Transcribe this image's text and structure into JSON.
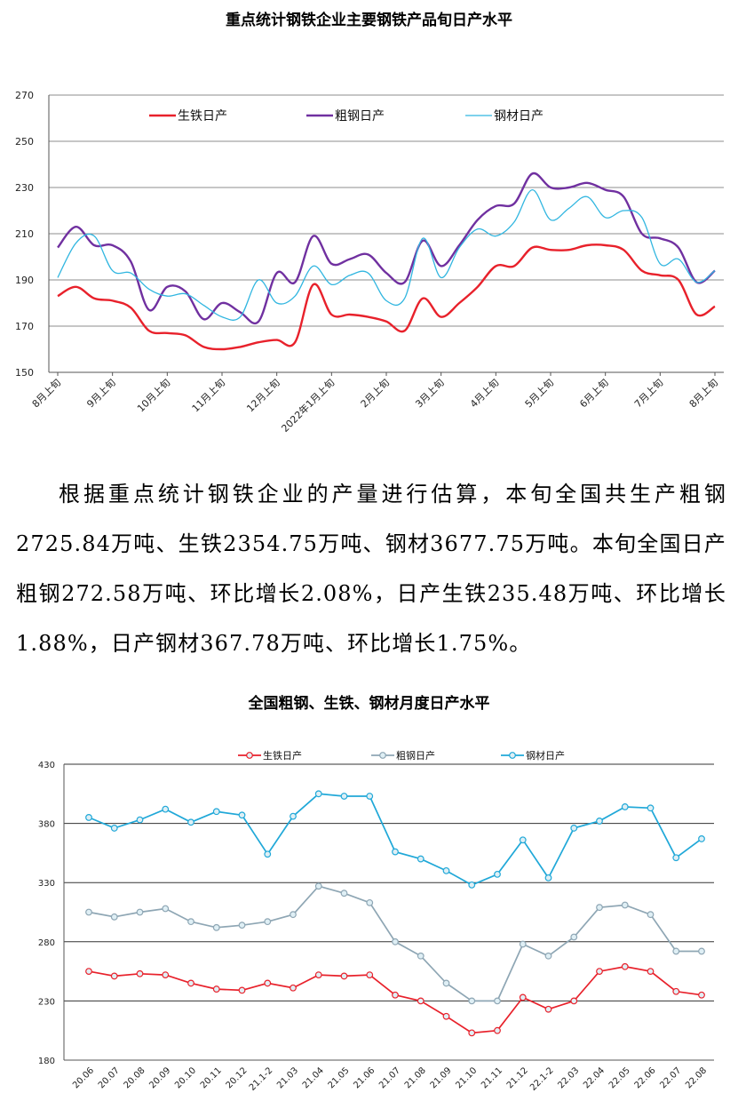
{
  "chart_data": [
    {
      "type": "line",
      "title": "重点统计钢铁企业主要钢铁产品旬日产水平",
      "ylim": [
        150,
        270
      ],
      "yticks": [
        150,
        170,
        190,
        210,
        230,
        250,
        270
      ],
      "grid": true,
      "legend": "top",
      "x_tick_labels": [
        "8月上旬",
        "9月上旬",
        "10月上旬",
        "11月上旬",
        "12月上旬",
        "2022年1月上旬",
        "2月上旬",
        "3月上旬",
        "4月上旬",
        "5月上旬",
        "6月上旬",
        "7月上旬",
        "8月上旬"
      ],
      "series": [
        {
          "name": "生铁日产",
          "color": "#e8212b",
          "values": [
            183,
            187,
            182,
            181,
            178,
            168,
            167,
            166,
            161,
            160,
            161,
            163,
            164,
            163,
            188,
            175,
            175,
            174,
            172,
            168,
            182,
            174,
            180,
            187,
            196,
            196,
            204,
            203,
            203,
            205,
            205,
            203,
            194,
            192,
            190,
            175,
            178.5
          ]
        },
        {
          "name": "粗钢日产",
          "color": "#7030a0",
          "values": [
            204,
            213,
            205,
            205,
            198,
            177,
            187,
            185,
            173,
            180,
            176,
            172,
            193,
            189,
            209,
            197,
            199,
            201,
            193,
            189,
            207,
            196,
            205,
            216,
            222,
            223,
            236,
            230,
            230,
            232,
            229,
            226,
            210,
            208,
            204,
            189,
            194
          ]
        },
        {
          "name": "钢材日产",
          "color": "#31b6e0",
          "values": [
            191,
            206,
            209,
            194,
            193,
            186,
            183,
            184,
            179,
            174,
            174,
            190,
            180,
            183,
            196,
            188,
            192,
            193,
            181,
            182,
            208,
            191,
            204,
            212,
            209,
            215,
            229,
            216,
            221,
            226,
            217,
            220,
            217,
            197,
            199,
            189,
            194
          ]
        }
      ]
    },
    {
      "type": "line",
      "title": "全国粗钢、生铁、钢材月度日产水平",
      "ylim": [
        180,
        430
      ],
      "yticks": [
        180,
        230,
        280,
        330,
        380,
        430
      ],
      "grid": true,
      "legend": "top",
      "categories": [
        "20.06",
        "20.07",
        "20.08",
        "20.09",
        "20.10",
        "20.11",
        "20.12",
        "21.1-2",
        "21.03",
        "21.04",
        "21.05",
        "21.06",
        "21.07",
        "21.08",
        "21.09",
        "21.10",
        "21.11",
        "21.12",
        "22.1-2",
        "22.03",
        "22.04",
        "22.05",
        "22.06",
        "22.07",
        "22.08"
      ],
      "series": [
        {
          "name": "生铁日产",
          "color": "#e8212b",
          "values": [
            255,
            251,
            253,
            252,
            245,
            240,
            239,
            245,
            241,
            252,
            251,
            252,
            235,
            230,
            217,
            203,
            205,
            233,
            223,
            230,
            255,
            259,
            255,
            238,
            235
          ]
        },
        {
          "name": "粗钢日产",
          "color": "#8ea6b4",
          "values": [
            305,
            301,
            305,
            308,
            297,
            292,
            294,
            297,
            303,
            327,
            321,
            313,
            280,
            268,
            245,
            230,
            230,
            278,
            268,
            284,
            309,
            311,
            303,
            272,
            272
          ]
        },
        {
          "name": "钢材日产",
          "color": "#20a8d8",
          "values": [
            385,
            376,
            383,
            392,
            381,
            390,
            387,
            354,
            386,
            405,
            403,
            403,
            356,
            350,
            340,
            328,
            337,
            366,
            334,
            376,
            382,
            394,
            393,
            351,
            367
          ]
        }
      ]
    }
  ],
  "text": {
    "title1": "重点统计钢铁企业主要钢铁产品旬日产水平",
    "title2": "全国粗钢、生铁、钢材月度日产水平",
    "paragraph": "根据重点统计钢铁企业的产量进行估算，本旬全国共生产粗钢2725.84万吨、生铁2354.75万吨、钢材3677.75万吨。本旬全国日产粗钢272.58万吨、环比增长2.08%，日产生铁235.48万吨、环比增长1.88%，日产钢材367.78万吨、环比增长1.75%。"
  }
}
